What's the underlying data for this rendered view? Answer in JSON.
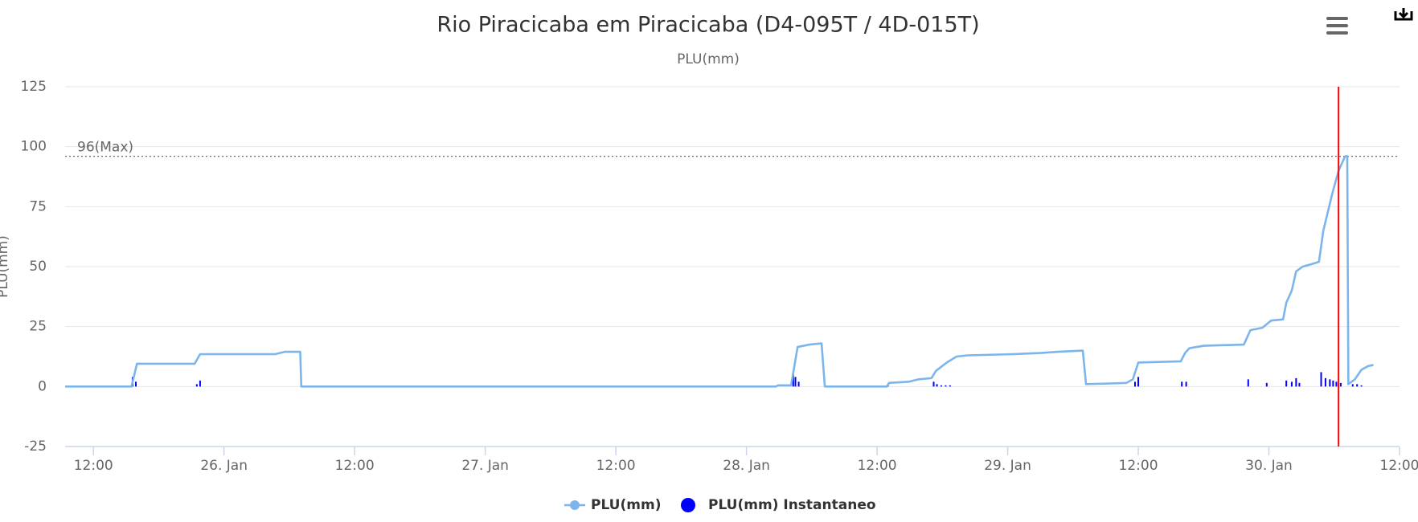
{
  "chart_data": {
    "type": "line",
    "title": "Rio Piracicaba em Piracicaba (D4-095T / 4D-015T)",
    "subtitle": "PLU(mm)",
    "y_label": "PLU(mm)",
    "xlim": [
      -14.6,
      108
    ],
    "xticks": [
      {
        "value": -12,
        "label": "12:00"
      },
      {
        "value": 0,
        "label": "26. Jan"
      },
      {
        "value": 12,
        "label": "12:00"
      },
      {
        "value": 24,
        "label": "27. Jan"
      },
      {
        "value": 36,
        "label": "12:00"
      },
      {
        "value": 48,
        "label": "28. Jan"
      },
      {
        "value": 60,
        "label": "12:00"
      },
      {
        "value": 72,
        "label": "29. Jan"
      },
      {
        "value": 84,
        "label": "12:00"
      },
      {
        "value": 96,
        "label": "30. Jan"
      },
      {
        "value": 108,
        "label": "12:00"
      }
    ],
    "ylim": [
      -25,
      125
    ],
    "yticks": [
      -25,
      0,
      25,
      50,
      75,
      100,
      125
    ],
    "grid": true,
    "plot_lines": [
      {
        "value": 96,
        "label": "96(Max)",
        "color": "#666666"
      }
    ],
    "x_plot_lines": [
      {
        "value": 102.4,
        "color": "#ff0000"
      }
    ],
    "series": [
      {
        "name": "PLU(mm)",
        "color": "#7cb5ec",
        "type": "line",
        "x": [
          -14.6,
          -8.5,
          -8.0,
          -2.7,
          -2.2,
          4.7,
          5.6,
          7.0,
          7.1,
          50.7,
          50.9,
          52.1,
          52.7,
          53.8,
          54.9,
          55.2,
          60.9,
          61.1,
          62.9,
          63.8,
          65.0,
          65.4,
          66.4,
          67.3,
          68.3,
          72.5,
          75.0,
          76.6,
          78.9,
          79.2,
          80.8,
          82.9,
          83.5,
          84.0,
          87.9,
          88.3,
          88.7,
          90.0,
          93.7,
          94.3,
          95.4,
          96.2,
          97.3,
          97.6,
          98.1,
          98.5,
          99.1,
          99.9,
          100.6,
          101.0,
          101.8,
          102.4,
          103.0,
          103.2,
          103.3,
          103.9,
          104.5,
          105.1,
          105.6
        ],
        "values": [
          0,
          0,
          9.5,
          9.5,
          13.5,
          13.5,
          14.5,
          14.5,
          0,
          0,
          0.5,
          0.5,
          16.5,
          17.5,
          18,
          0,
          0,
          1.5,
          2,
          3,
          3.5,
          6.5,
          10,
          12.5,
          13,
          13.5,
          14,
          14.5,
          15,
          1,
          1.2,
          1.5,
          3,
          10,
          10.5,
          14,
          16,
          17,
          17.5,
          23.5,
          24.5,
          27.5,
          28,
          35,
          40,
          48,
          50,
          51,
          52,
          65,
          80,
          90,
          96,
          96,
          1,
          3,
          7,
          8.5,
          9
        ]
      },
      {
        "name": "PLU(mm) Instantaneo",
        "color": "#0000ff",
        "type": "column",
        "x": [
          -8.4,
          -8.1,
          -2.5,
          -2.2,
          52.3,
          52.5,
          52.8,
          61.0,
          65.2,
          65.5,
          65.9,
          66.3,
          66.7,
          83.7,
          84.0,
          88.0,
          88.4,
          94.1,
          95.8,
          97.6,
          98.1,
          98.5,
          98.8,
          100.8,
          101.2,
          101.6,
          101.9,
          102.2,
          102.6,
          103.7,
          104.1,
          104.5
        ],
        "values": [
          4,
          2,
          1,
          2.5,
          5,
          4,
          2,
          1,
          2,
          1,
          0.5,
          0.5,
          0.5,
          2,
          4,
          2,
          2,
          3,
          1.5,
          2.5,
          2,
          3.5,
          1.5,
          6,
          3.5,
          3,
          2.5,
          2,
          1.5,
          1,
          1,
          0.5
        ]
      }
    ]
  }
}
